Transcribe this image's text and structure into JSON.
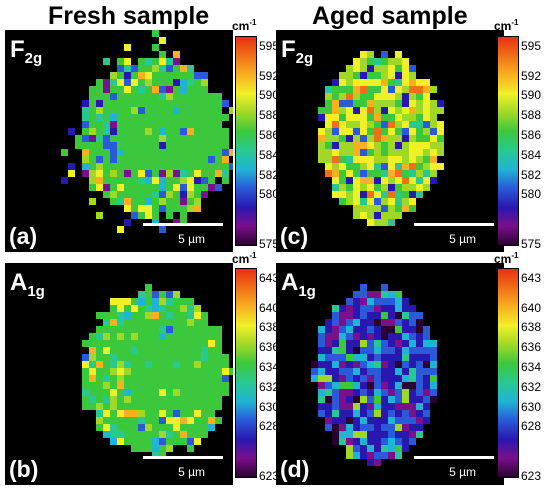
{
  "titles": {
    "fresh": "Fresh sample",
    "aged": "Aged sample"
  },
  "scale_bar": "5 µm",
  "modes": {
    "f": "F",
    "f_sub": "2g",
    "a": "A",
    "a_sub": "1g"
  },
  "panels": {
    "a": "(a)",
    "b": "(b)",
    "c": "(c)",
    "d": "(d)"
  },
  "colorbar_unit": "cm",
  "colorbar_unit_exp": "-1",
  "colorbars": {
    "fresh_f2g": {
      "min": 575,
      "max": 596,
      "ticks": [
        "595",
        "592",
        "590",
        "588",
        "586",
        "584",
        "582",
        "580",
        "575"
      ]
    },
    "aged_f2g": {
      "min": 575,
      "max": 596,
      "ticks": [
        "595",
        "592",
        "590",
        "588",
        "586",
        "584",
        "582",
        "580",
        "575"
      ]
    },
    "fresh_a1g": {
      "min": 623,
      "max": 644,
      "ticks": [
        "643",
        "640",
        "638",
        "636",
        "634",
        "632",
        "630",
        "628",
        "623"
      ]
    },
    "aged_a1g": {
      "min": 623,
      "max": 644,
      "ticks": [
        "643",
        "640",
        "638",
        "636",
        "634",
        "632",
        "630",
        "628",
        "623"
      ]
    }
  },
  "colormap": [
    "#2a0030",
    "#7a108c",
    "#2818b0",
    "#2a5ad8",
    "#20b4d4",
    "#28c890",
    "#3cc83c",
    "#a0d828",
    "#f0f028",
    "#f8b020",
    "#f07018",
    "#e83010"
  ]
}
